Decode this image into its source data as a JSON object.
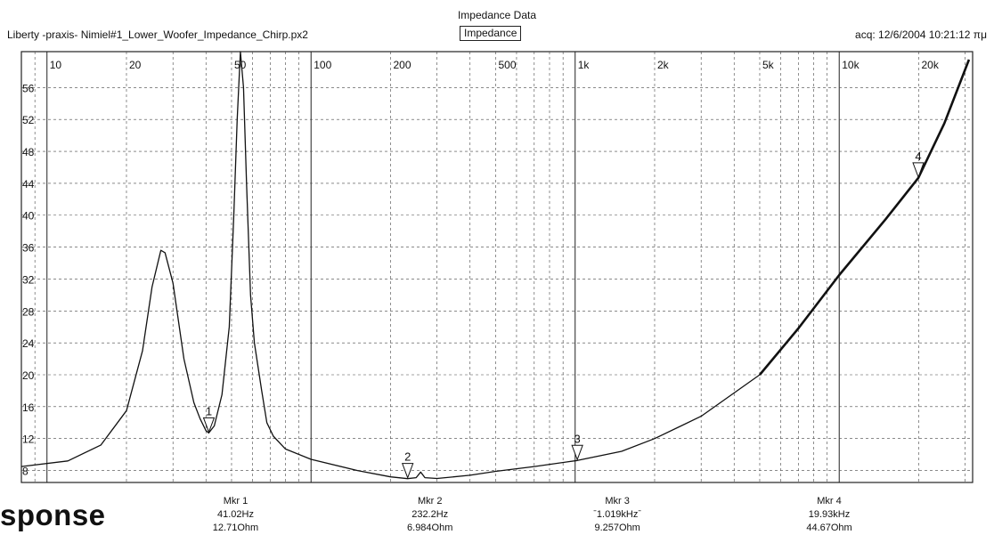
{
  "header": {
    "app_title": "Liberty -praxis-  Nimiel#1_Lower_Woofer_Impedance_Chirp.px2",
    "main_title": "Impedance Data",
    "tab_label": "Impedance",
    "acq": "acq: 12/6/2004 10:21:12 πμ"
  },
  "stray_text": "sponse",
  "chart_data": {
    "type": "line",
    "title": "Impedance Data",
    "xlabel": "",
    "ylabel": "",
    "x_scale": "log",
    "xlim": [
      8,
      32000
    ],
    "ylim": [
      6.5,
      60.5
    ],
    "x_tick_labels": [
      "10",
      "20",
      "50",
      "100",
      "200",
      "500",
      "1k",
      "2k",
      "5k",
      "10k",
      "20k"
    ],
    "x_ticks": [
      10,
      20,
      50,
      100,
      200,
      500,
      1000,
      2000,
      5000,
      10000,
      20000
    ],
    "y_tick_labels": [
      "56",
      "52",
      "48",
      "44",
      "40",
      "36",
      "32",
      "28",
      "24",
      "20",
      "16",
      "12",
      "8"
    ],
    "y_ticks": [
      56,
      52,
      48,
      44,
      40,
      36,
      32,
      28,
      24,
      20,
      16,
      12,
      8
    ],
    "grid": true,
    "series": [
      {
        "color": "#111111",
        "points": [
          [
            8,
            8.5
          ],
          [
            12,
            9.2
          ],
          [
            16,
            11.2
          ],
          [
            20,
            15.5
          ],
          [
            23,
            23
          ],
          [
            25,
            31
          ],
          [
            27,
            35.6
          ],
          [
            28,
            35.3
          ],
          [
            30,
            31.5
          ],
          [
            33,
            22
          ],
          [
            36,
            16.5
          ],
          [
            38,
            14.5
          ],
          [
            40,
            13.0
          ],
          [
            41,
            12.7
          ],
          [
            43,
            13.6
          ],
          [
            46,
            17.5
          ],
          [
            49,
            26
          ],
          [
            51,
            40
          ],
          [
            52.5,
            52
          ],
          [
            54,
            60.5
          ],
          [
            55.5,
            56
          ],
          [
            57,
            44
          ],
          [
            59,
            30
          ],
          [
            61,
            24
          ],
          [
            63,
            21
          ],
          [
            65,
            18
          ],
          [
            68,
            14
          ],
          [
            72,
            12.3
          ],
          [
            80,
            10.7
          ],
          [
            100,
            9.4
          ],
          [
            150,
            8.0
          ],
          [
            200,
            7.2
          ],
          [
            232,
            6.98
          ],
          [
            250,
            7.1
          ],
          [
            260,
            7.8
          ],
          [
            270,
            7.1
          ],
          [
            300,
            7.0
          ],
          [
            400,
            7.4
          ],
          [
            500,
            7.9
          ],
          [
            700,
            8.5
          ],
          [
            1019,
            9.26
          ],
          [
            1500,
            10.4
          ],
          [
            2000,
            12.0
          ],
          [
            3000,
            14.8
          ],
          [
            5000,
            20.0
          ],
          [
            7000,
            25.8
          ],
          [
            10000,
            32.5
          ],
          [
            15000,
            39.5
          ],
          [
            19930,
            44.67
          ],
          [
            25000,
            51.5
          ],
          [
            31000,
            59.5
          ]
        ]
      }
    ],
    "markers": [
      {
        "name": "1",
        "x": 41.02,
        "y": 12.71
      },
      {
        "name": "2",
        "x": 232.2,
        "y": 6.984
      },
      {
        "name": "3",
        "x": 1019,
        "y": 9.257
      },
      {
        "name": "4",
        "x": 19930,
        "y": 44.67
      }
    ],
    "marker_readouts": [
      {
        "label": "Mkr 1",
        "freq": "41.02Hz",
        "value": "12.71Ohm"
      },
      {
        "label": "Mkr 2",
        "freq": "232.2Hz",
        "value": "6.984Ohm"
      },
      {
        "label": "Mkr 3",
        "freq": "ˉ1.019kHzˉ",
        "value": "9.257Ohm"
      },
      {
        "label": "Mkr 4",
        "freq": "19.93kHz",
        "value": "44.67Ohm"
      }
    ]
  }
}
